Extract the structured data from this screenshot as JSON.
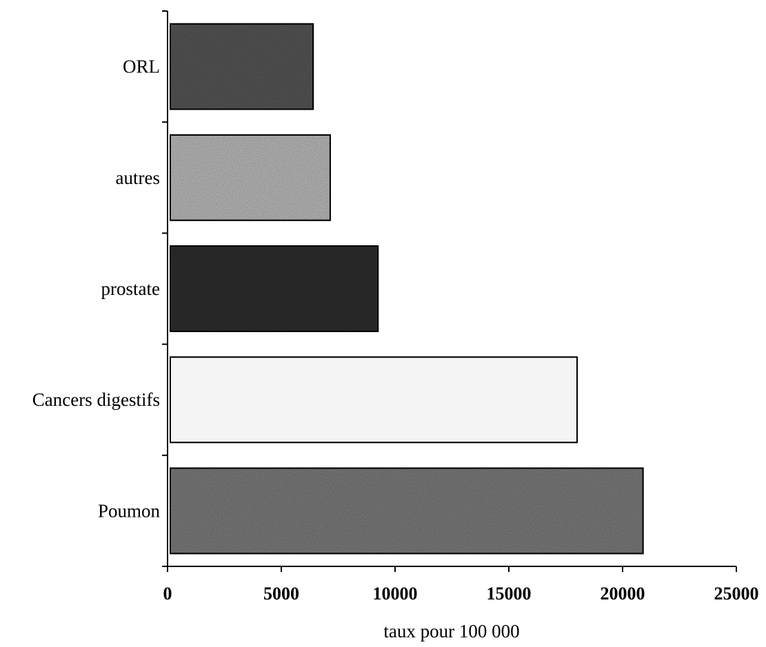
{
  "chart_data": {
    "type": "bar",
    "orientation": "horizontal",
    "title": "",
    "xlabel": "taux pour 100 000",
    "ylabel": "",
    "categories": [
      "Poumon",
      "Cancers digestifs",
      "prostate",
      "autres",
      "ORL"
    ],
    "values": [
      20900,
      18000,
      9250,
      7150,
      6400
    ],
    "xlim": [
      0,
      25000
    ],
    "xticks": [
      "0",
      "5000",
      "10000",
      "15000",
      "20000",
      "25000"
    ],
    "grid": false,
    "legend": "none",
    "bar_styles": [
      {
        "category": "Poumon",
        "color": "#7a7a7a",
        "pattern": "dense-speckle"
      },
      {
        "category": "Cancers digestifs",
        "color": "#f4f4f4",
        "pattern": "sparse-speckle"
      },
      {
        "category": "prostate",
        "color": "#2e2e2e",
        "pattern": "dense-speckle"
      },
      {
        "category": "autres",
        "color": "#b8b8b8",
        "pattern": "medium-speckle"
      },
      {
        "category": "ORL",
        "color": "#555555",
        "pattern": "dense-speckle"
      }
    ]
  }
}
